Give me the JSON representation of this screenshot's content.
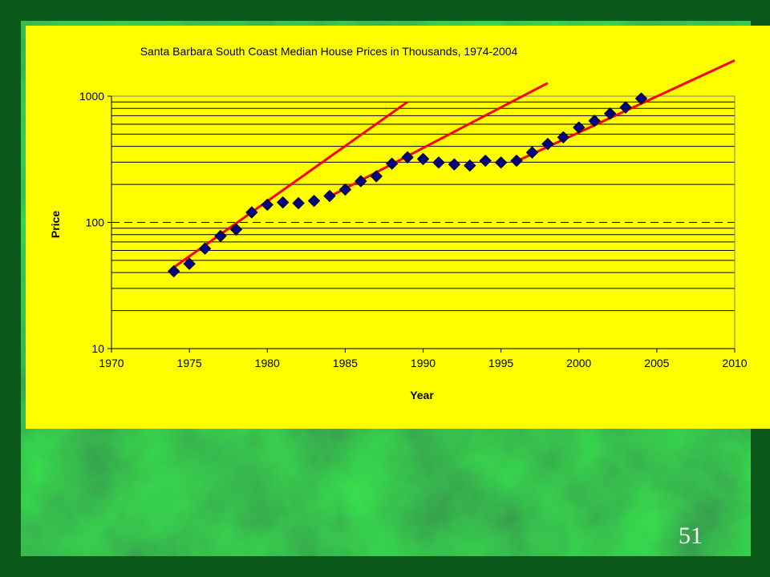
{
  "slide": {
    "number": "51"
  },
  "colors": {
    "panel": "#ffff00",
    "plot_area": "#ffff00",
    "marker_fill": "#000080",
    "trend_line": "#ff0000",
    "gridline": "#000000",
    "background": "#0f4a22"
  },
  "chart_data": {
    "type": "scatter",
    "title": "Santa Barbara South Coast Median House Prices in Thousands, 1974-2004",
    "xlabel": "Year",
    "ylabel": "Price",
    "xlim": [
      1970,
      2010
    ],
    "ylim": [
      10,
      1000
    ],
    "y_scale": "log",
    "grid": "horizontal minor gridlines, dashed line at 100",
    "x_ticks": [
      "1970",
      "1975",
      "1980",
      "1985",
      "1990",
      "1995",
      "2000",
      "2005",
      "2010"
    ],
    "y_ticks": [
      "10",
      "100",
      "1000"
    ],
    "series": [
      {
        "marker": "diamond",
        "x": [
          1974,
          1975,
          1976,
          1977,
          1978,
          1979,
          1980,
          1981,
          1982,
          1983,
          1984,
          1985,
          1986,
          1987,
          1988,
          1989,
          1990,
          1991,
          1992,
          1993,
          1994,
          1995,
          1996,
          1997,
          1998,
          1999,
          2000,
          2001,
          2002,
          2003,
          2004
        ],
        "y": [
          41,
          47,
          62,
          78,
          88,
          120,
          138,
          144,
          142,
          148,
          162,
          182,
          212,
          232,
          292,
          328,
          318,
          298,
          288,
          282,
          308,
          298,
          308,
          358,
          418,
          472,
          565,
          638,
          728,
          815,
          958
        ]
      }
    ],
    "trend_lines": [
      {
        "from": [
          1974,
          44
        ],
        "to": [
          1989,
          900
        ]
      },
      {
        "from": [
          1984,
          160
        ],
        "to": [
          1998,
          1270
        ]
      },
      {
        "from": [
          1996,
          305
        ],
        "to": [
          2010,
          1920
        ]
      }
    ]
  }
}
